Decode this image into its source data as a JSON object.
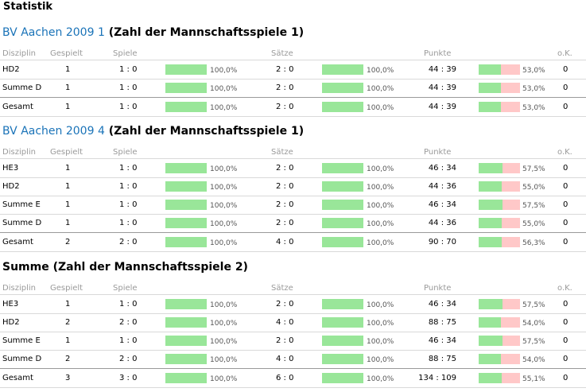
{
  "page": {
    "title": "Statistik"
  },
  "headers": {
    "disziplin": "Disziplin",
    "gespielt": "Gespielt",
    "spiele": "Spiele",
    "saetze": "Sätze",
    "punkte": "Punkte",
    "ok": "o.K."
  },
  "sections": [
    {
      "team": "BV Aachen 2009 1",
      "subtitle": " (Zahl der Mannschaftsspiele 1)",
      "rows": [
        {
          "disziplin": "HD2",
          "gespielt": "1",
          "spiele": "1 : 0",
          "spiele_pct": "100,0%",
          "spiele_frac": 1.0,
          "saetze": "2 : 0",
          "saetze_pct": "100,0%",
          "saetze_frac": 1.0,
          "punkte": "44 : 39",
          "punkte_pct": "53,0%",
          "punkte_frac": 0.53,
          "ok": "0",
          "total": false
        },
        {
          "disziplin": "Summe D",
          "gespielt": "1",
          "spiele": "1 : 0",
          "spiele_pct": "100,0%",
          "spiele_frac": 1.0,
          "saetze": "2 : 0",
          "saetze_pct": "100,0%",
          "saetze_frac": 1.0,
          "punkte": "44 : 39",
          "punkte_pct": "53,0%",
          "punkte_frac": 0.53,
          "ok": "0",
          "total": false
        },
        {
          "disziplin": "Gesamt",
          "gespielt": "1",
          "spiele": "1 : 0",
          "spiele_pct": "100,0%",
          "spiele_frac": 1.0,
          "saetze": "2 : 0",
          "saetze_pct": "100,0%",
          "saetze_frac": 1.0,
          "punkte": "44 : 39",
          "punkte_pct": "53,0%",
          "punkte_frac": 0.53,
          "ok": "0",
          "total": true
        }
      ]
    },
    {
      "team": "BV Aachen 2009 4",
      "subtitle": " (Zahl der Mannschaftsspiele 1)",
      "rows": [
        {
          "disziplin": "HE3",
          "gespielt": "1",
          "spiele": "1 : 0",
          "spiele_pct": "100,0%",
          "spiele_frac": 1.0,
          "saetze": "2 : 0",
          "saetze_pct": "100,0%",
          "saetze_frac": 1.0,
          "punkte": "46 : 34",
          "punkte_pct": "57,5%",
          "punkte_frac": 0.575,
          "ok": "0",
          "total": false
        },
        {
          "disziplin": "HD2",
          "gespielt": "1",
          "spiele": "1 : 0",
          "spiele_pct": "100,0%",
          "spiele_frac": 1.0,
          "saetze": "2 : 0",
          "saetze_pct": "100,0%",
          "saetze_frac": 1.0,
          "punkte": "44 : 36",
          "punkte_pct": "55,0%",
          "punkte_frac": 0.55,
          "ok": "0",
          "total": false
        },
        {
          "disziplin": "Summe E",
          "gespielt": "1",
          "spiele": "1 : 0",
          "spiele_pct": "100,0%",
          "spiele_frac": 1.0,
          "saetze": "2 : 0",
          "saetze_pct": "100,0%",
          "saetze_frac": 1.0,
          "punkte": "46 : 34",
          "punkte_pct": "57,5%",
          "punkte_frac": 0.575,
          "ok": "0",
          "total": false
        },
        {
          "disziplin": "Summe D",
          "gespielt": "1",
          "spiele": "1 : 0",
          "spiele_pct": "100,0%",
          "spiele_frac": 1.0,
          "saetze": "2 : 0",
          "saetze_pct": "100,0%",
          "saetze_frac": 1.0,
          "punkte": "44 : 36",
          "punkte_pct": "55,0%",
          "punkte_frac": 0.55,
          "ok": "0",
          "total": false
        },
        {
          "disziplin": "Gesamt",
          "gespielt": "2",
          "spiele": "2 : 0",
          "spiele_pct": "100,0%",
          "spiele_frac": 1.0,
          "saetze": "4 : 0",
          "saetze_pct": "100,0%",
          "saetze_frac": 1.0,
          "punkte": "90 : 70",
          "punkte_pct": "56,3%",
          "punkte_frac": 0.563,
          "ok": "0",
          "total": true
        }
      ]
    },
    {
      "team": "",
      "subtitle": "Summe (Zahl der Mannschaftsspiele 2)",
      "rows": [
        {
          "disziplin": "HE3",
          "gespielt": "1",
          "spiele": "1 : 0",
          "spiele_pct": "100,0%",
          "spiele_frac": 1.0,
          "saetze": "2 : 0",
          "saetze_pct": "100,0%",
          "saetze_frac": 1.0,
          "punkte": "46 : 34",
          "punkte_pct": "57,5%",
          "punkte_frac": 0.575,
          "ok": "0",
          "total": false
        },
        {
          "disziplin": "HD2",
          "gespielt": "2",
          "spiele": "2 : 0",
          "spiele_pct": "100,0%",
          "spiele_frac": 1.0,
          "saetze": "4 : 0",
          "saetze_pct": "100,0%",
          "saetze_frac": 1.0,
          "punkte": "88 : 75",
          "punkte_pct": "54,0%",
          "punkte_frac": 0.54,
          "ok": "0",
          "total": false
        },
        {
          "disziplin": "Summe E",
          "gespielt": "1",
          "spiele": "1 : 0",
          "spiele_pct": "100,0%",
          "spiele_frac": 1.0,
          "saetze": "2 : 0",
          "saetze_pct": "100,0%",
          "saetze_frac": 1.0,
          "punkte": "46 : 34",
          "punkte_pct": "57,5%",
          "punkte_frac": 0.575,
          "ok": "0",
          "total": false
        },
        {
          "disziplin": "Summe D",
          "gespielt": "2",
          "spiele": "2 : 0",
          "spiele_pct": "100,0%",
          "spiele_frac": 1.0,
          "saetze": "4 : 0",
          "saetze_pct": "100,0%",
          "saetze_frac": 1.0,
          "punkte": "88 : 75",
          "punkte_pct": "54,0%",
          "punkte_frac": 0.54,
          "ok": "0",
          "total": false
        },
        {
          "disziplin": "Gesamt",
          "gespielt": "3",
          "spiele": "3 : 0",
          "spiele_pct": "100,0%",
          "spiele_frac": 1.0,
          "saetze": "6 : 0",
          "saetze_pct": "100,0%",
          "saetze_frac": 1.0,
          "punkte": "134 : 109",
          "punkte_pct": "55,1%",
          "punkte_frac": 0.551,
          "ok": "0",
          "total": true
        }
      ]
    }
  ],
  "colors": {
    "win": "#99e699",
    "loss": "#ffc8c8",
    "link": "#1a73b8"
  }
}
